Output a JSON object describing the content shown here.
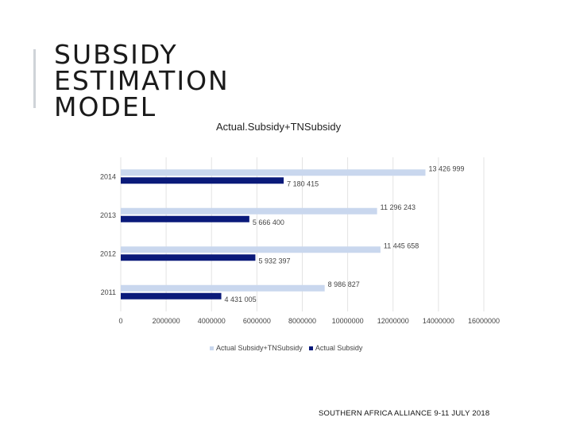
{
  "slide": {
    "title_lines": [
      "SUBSIDY",
      "ESTIMATION",
      "MODEL"
    ],
    "footer": "SOUTHERN AFRICA ALLIANCE  9-11 JULY 2018",
    "accent_color": "#cfd3d8"
  },
  "chart_data": {
    "type": "bar",
    "orientation": "horizontal",
    "title": "Actual.Subsidy+TNSubsidy",
    "categories": [
      "2014",
      "2013",
      "2012",
      "2011"
    ],
    "series": [
      {
        "name": "Actual Subsidy+TNSubsidy",
        "color": "#c9d7ee",
        "values": [
          13426999,
          11296243,
          11445658,
          8986827
        ],
        "labels": [
          "13 426 999",
          "11 296 243",
          "11 445 658",
          "8 986 827"
        ]
      },
      {
        "name": "Actual Subsidy",
        "color": "#0a1a7a",
        "values": [
          7180415,
          5666400,
          5932397,
          4431005
        ],
        "labels": [
          "7 180 415",
          "5 666 400",
          "5 932 397",
          "4 431 005"
        ]
      }
    ],
    "xlim": [
      0,
      16000000
    ],
    "x_ticks": [
      0,
      2000000,
      4000000,
      6000000,
      8000000,
      10000000,
      12000000,
      14000000,
      16000000
    ],
    "x_tick_labels": [
      "0",
      "2000000",
      "4000000",
      "6000000",
      "8000000",
      "10000000",
      "12000000",
      "14000000",
      "16000000"
    ],
    "grid": "vertical",
    "grid_color": "#e3e3e3",
    "legend_position": "bottom"
  }
}
